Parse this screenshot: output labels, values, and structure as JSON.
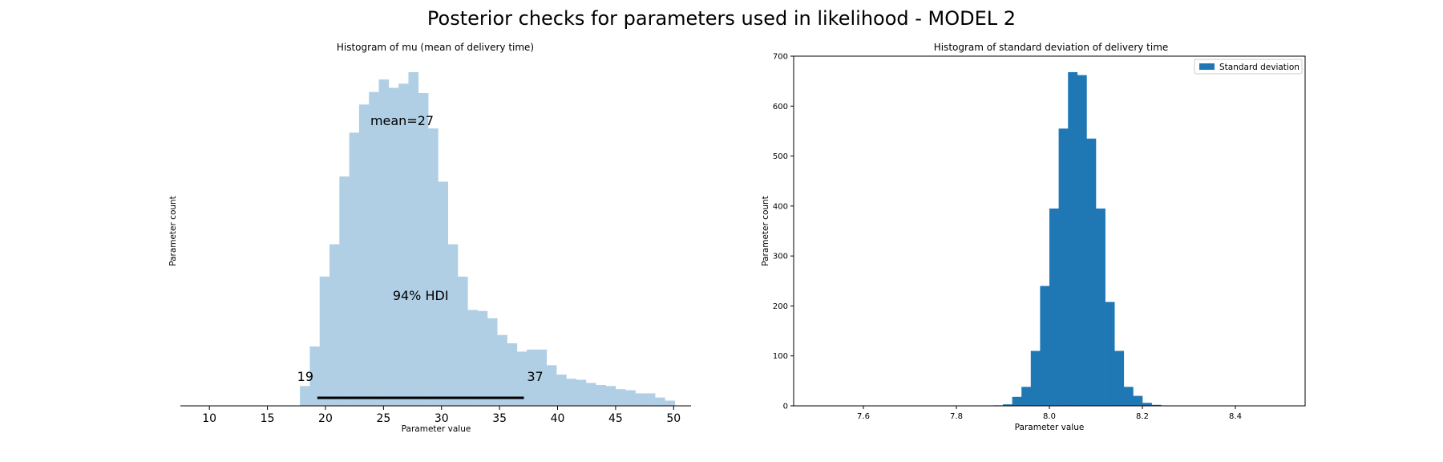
{
  "figure": {
    "title": "Posterior checks for parameters used in likelihood - MODEL 2"
  },
  "chart_data": [
    {
      "type": "histogram",
      "title": "Histogram of mu (mean of delivery time)",
      "xlabel": "Parameter value",
      "ylabel": "Parameter count",
      "xlim": [
        7.5,
        51.5
      ],
      "xticks": [
        "10",
        "15",
        "20",
        "25",
        "30",
        "35",
        "40",
        "45",
        "50"
      ],
      "bar_color": "#b0cfe4",
      "bin_edges": [
        17.8,
        18.65,
        19.5,
        20.35,
        21.2,
        22.05,
        22.9,
        23.75,
        24.6,
        25.45,
        26.3,
        27.15,
        28.0,
        28.85,
        29.7,
        30.55,
        31.4,
        32.25,
        33.1,
        33.95,
        34.8,
        35.65,
        36.5,
        37.35,
        38.2,
        39.05,
        39.9,
        40.75,
        41.6,
        42.45,
        43.3,
        44.15,
        45.0,
        45.85,
        46.7,
        47.55,
        48.4,
        49.25,
        50.1
      ],
      "bin_heights": [
        19,
        57,
        124,
        155,
        220,
        262,
        289,
        301,
        313,
        305,
        309,
        320,
        300,
        266,
        215,
        155,
        124,
        92,
        91,
        84,
        68,
        60,
        52,
        54,
        54,
        39,
        30,
        26,
        25,
        22,
        20,
        19,
        16,
        15,
        12,
        12,
        8,
        5
      ],
      "ylim": [
        0,
        320
      ],
      "annotations": {
        "mean_label": "mean=27",
        "hdi_label": "94% HDI",
        "hdi_low_label": "19",
        "hdi_high_label": "37"
      },
      "hdi": [
        19.3,
        37.1
      ]
    },
    {
      "type": "histogram",
      "title": "Histogram of standard deviation of delivery time",
      "xlabel": "Parameter value",
      "ylabel": "Parameter count",
      "xlim": [
        7.45,
        8.55
      ],
      "ylim": [
        0,
        700
      ],
      "xticks": [
        "7.6",
        "7.8",
        "8.0",
        "8.2",
        "8.4"
      ],
      "yticks": [
        "0",
        "100",
        "200",
        "300",
        "400",
        "500",
        "600",
        "700"
      ],
      "bar_color": "#1f77b4",
      "bin_edges": [
        7.88,
        7.9,
        7.92,
        7.94,
        7.96,
        7.98,
        8.0,
        8.02,
        8.04,
        8.06,
        8.08,
        8.1,
        8.12,
        8.14,
        8.16,
        8.18,
        8.2,
        8.22,
        8.24
      ],
      "bin_heights": [
        1,
        3,
        18,
        38,
        110,
        240,
        395,
        555,
        668,
        662,
        535,
        395,
        208,
        110,
        38,
        20,
        6,
        2
      ],
      "legend": {
        "label": "Standard deviation",
        "position": "upper right"
      }
    }
  ]
}
